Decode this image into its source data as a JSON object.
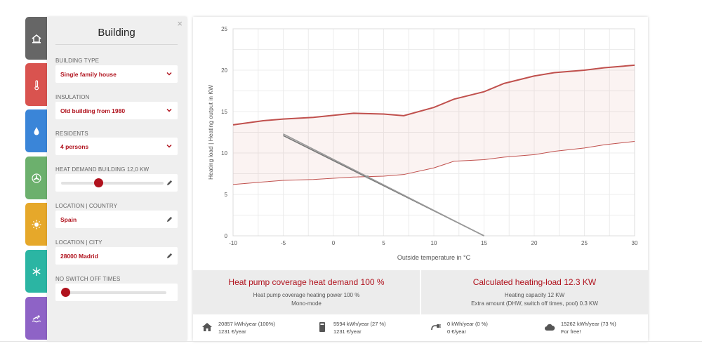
{
  "tabs": [
    {
      "name": "building",
      "color": "#666666",
      "icon": "house-icon"
    },
    {
      "name": "temperature",
      "color": "#d9534f",
      "icon": "thermometer-icon"
    },
    {
      "name": "water",
      "color": "#3a85d8",
      "icon": "water-drop-icon"
    },
    {
      "name": "heating",
      "color": "#6cb06d",
      "icon": "fan-icon"
    },
    {
      "name": "sun",
      "color": "#e6a82a",
      "icon": "sun-icon"
    },
    {
      "name": "cooling",
      "color": "#2bb5a3",
      "icon": "snowflake-icon"
    },
    {
      "name": "pool",
      "color": "#8e63c6",
      "icon": "swimmer-icon"
    }
  ],
  "panel": {
    "title": "Building",
    "close_symbol": "×",
    "building_type": {
      "label": "BUILDING TYPE",
      "value": "Single family house"
    },
    "insulation": {
      "label": "INSULATION",
      "value": "Old building from 1980"
    },
    "residents": {
      "label": "RESIDENTS",
      "value": "4 persons"
    },
    "heat_demand": {
      "label": "HEAT DEMAND BUILDING 12,0 KW",
      "level": 0.36
    },
    "country": {
      "label": "LOCATION | COUNTRY",
      "value": "Spain"
    },
    "city": {
      "label": "LOCATION | CITY",
      "value": "28000 Madrid"
    },
    "switch_off": {
      "label": "NO SWITCH OFF TIMES",
      "level": 0.0
    }
  },
  "chart_data": {
    "type": "line",
    "ylabel": "Heating load | Heating output in KW",
    "xlabel": "Outside temperature in °C",
    "xlim": [
      -10,
      30
    ],
    "ylim": [
      0,
      25
    ],
    "x_ticks": [
      "-10",
      "-5",
      "0",
      "5",
      "10",
      "15",
      "20",
      "25",
      "30"
    ],
    "y_ticks": [
      "0",
      "5",
      "10",
      "15",
      "20",
      "25"
    ],
    "grid": true,
    "series": [
      {
        "role": "upper",
        "color": "#c0504d",
        "x": [
          -10,
          -7,
          -5,
          -2,
          2,
          5,
          7,
          10,
          12,
          15,
          17,
          20,
          22,
          25,
          27,
          30
        ],
        "y": [
          13.4,
          13.9,
          14.1,
          14.3,
          14.8,
          14.7,
          14.5,
          15.5,
          16.5,
          17.4,
          18.4,
          19.3,
          19.7,
          20.0,
          20.3,
          20.6
        ]
      },
      {
        "role": "lower",
        "color": "#c0504d",
        "x": [
          -10,
          -7,
          -5,
          -2,
          2,
          5,
          7,
          10,
          12,
          15,
          17,
          20,
          22,
          25,
          27,
          30
        ],
        "y": [
          6.2,
          6.5,
          6.7,
          6.8,
          7.1,
          7.2,
          7.4,
          8.2,
          9.0,
          9.2,
          9.5,
          9.8,
          10.2,
          10.6,
          11.0,
          11.4
        ]
      },
      {
        "role": "heating-load",
        "color": "#777777",
        "x": [
          -5,
          15
        ],
        "y": [
          12.1,
          0
        ]
      },
      {
        "role": "heating-load-2",
        "color": "#9a9a9a",
        "x": [
          -5,
          15
        ],
        "y": [
          12.3,
          0
        ]
      }
    ]
  },
  "coverage_left": {
    "title": "Heat pump coverage heat demand 100 %",
    "line1": "Heat pump coverage heating power 100 %",
    "line2": "Mono-mode"
  },
  "coverage_right": {
    "title": "Calculated heating-load 12.3 KW",
    "line1": "Heating capacity 12 KW",
    "line2": "Extra amount (DHW, switch off times, pool) 0.3 KW"
  },
  "stats": [
    {
      "icon": "house-icon",
      "line1": "20857 kWh/year (100%)",
      "line2": "1231 €/year"
    },
    {
      "icon": "heat-pump-icon",
      "line1": "5594 kWh/year (27 %)",
      "line2": "1231 €/year"
    },
    {
      "icon": "plug-icon",
      "line1": "0 kWh/year (0 %)",
      "line2": "0 €/year"
    },
    {
      "icon": "cloud-icon",
      "line1": "15262 kWh/year (73 %)",
      "line2": "For free!"
    }
  ]
}
